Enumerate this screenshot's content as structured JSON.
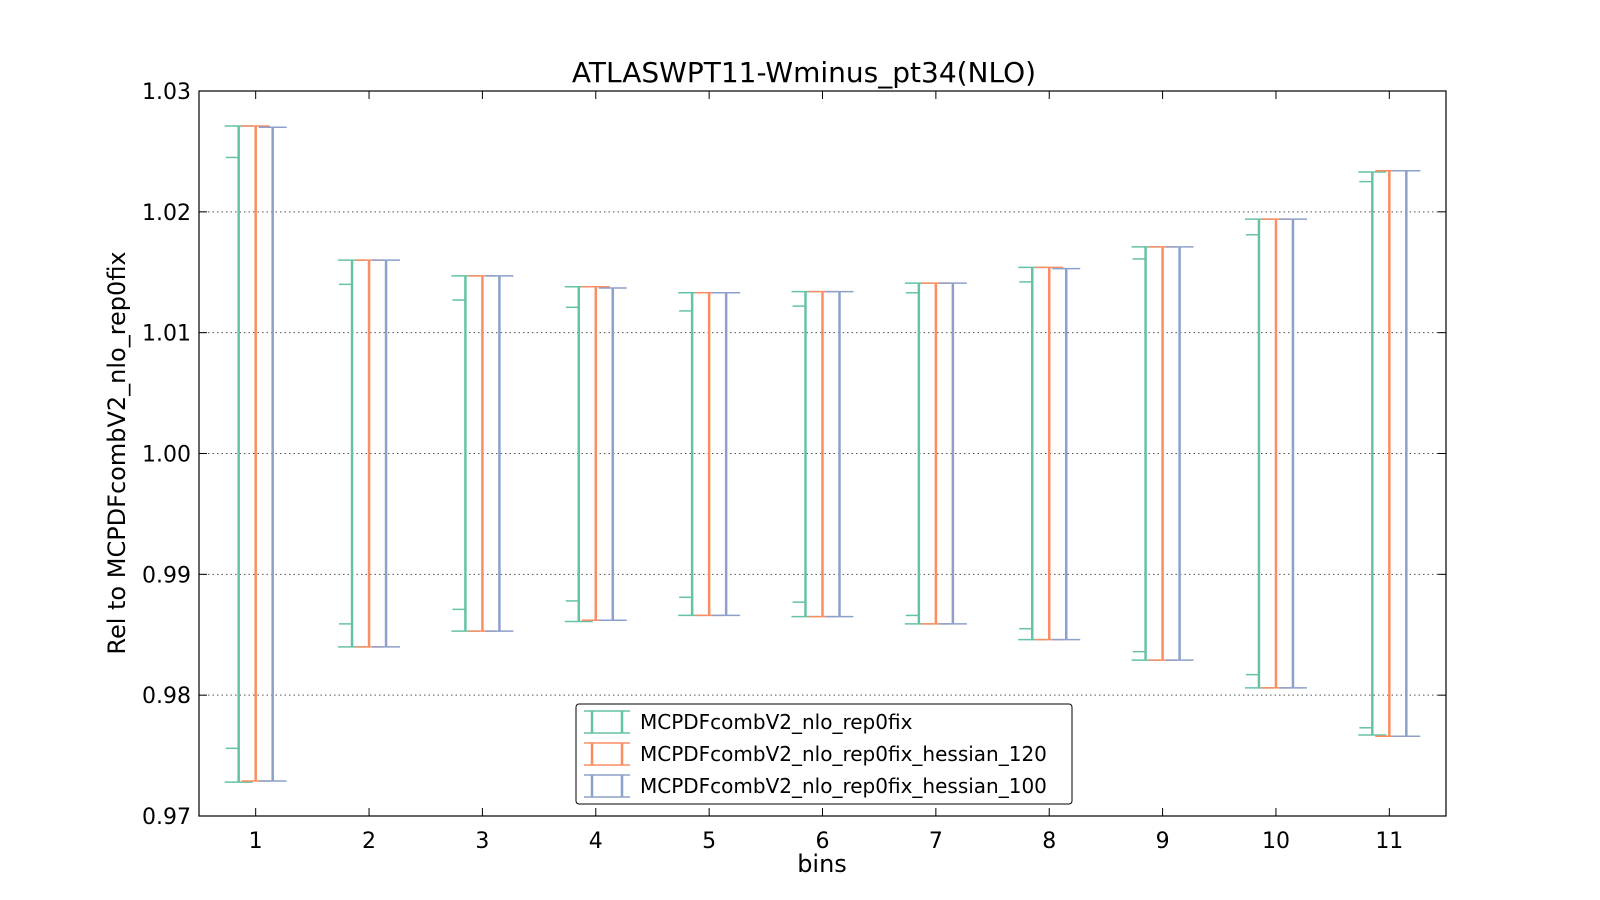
{
  "chart_data": {
    "type": "errorbar",
    "title": "ATLASWPT11-Wminus_pt34(NLO)",
    "xlabel": "bins",
    "ylabel": "Rel to MCPDFcombV2_nlo_rep0fix",
    "xlim": [
      0.5,
      11.5
    ],
    "ylim": [
      0.97,
      1.03
    ],
    "x_ticks": [
      "1",
      "2",
      "3",
      "4",
      "5",
      "6",
      "7",
      "8",
      "9",
      "10",
      "11"
    ],
    "y_ticks": [
      "0.97",
      "0.98",
      "0.99",
      "1.00",
      "1.01",
      "1.02",
      "1.03"
    ],
    "y_tick_values": [
      0.97,
      0.98,
      0.99,
      1.0,
      1.01,
      1.02,
      1.03
    ],
    "grid": "horizontal dotted",
    "legend_position": "lower center",
    "x": [
      1,
      2,
      3,
      4,
      5,
      6,
      7,
      8,
      9,
      10,
      11
    ],
    "series": [
      {
        "name": "MCPDFcombV2_nlo_rep0fix",
        "color": "#66c2a5",
        "offset": -0.15,
        "lower": [
          0.9728,
          0.984,
          0.9853,
          0.9861,
          0.9866,
          0.9865,
          0.9859,
          0.9846,
          0.9829,
          0.9806,
          0.9767
        ],
        "upper": [
          1.0271,
          1.016,
          1.0147,
          1.0138,
          1.0133,
          1.0134,
          1.0141,
          1.0154,
          1.0171,
          1.0194,
          1.0233
        ],
        "inner_lower": [
          0.9756,
          0.9859,
          0.9871,
          0.9878,
          0.9881,
          0.9877,
          0.9866,
          0.9855,
          0.9836,
          0.9817,
          0.9773
        ],
        "inner_upper": [
          1.0245,
          1.014,
          1.0127,
          1.0121,
          1.0118,
          1.0122,
          1.0133,
          1.0142,
          1.0161,
          1.0181,
          1.0225
        ]
      },
      {
        "name": "MCPDFcombV2_nlo_rep0fix_hessian_120",
        "color": "#fc8d62",
        "offset": 0.0,
        "lower": [
          0.9729,
          0.984,
          0.9853,
          0.9862,
          0.9866,
          0.9865,
          0.9859,
          0.9846,
          0.9829,
          0.9806,
          0.9766
        ],
        "upper": [
          1.0271,
          1.016,
          1.0147,
          1.0138,
          1.0133,
          1.0134,
          1.0141,
          1.0154,
          1.0171,
          1.0194,
          1.0234
        ]
      },
      {
        "name": "MCPDFcombV2_nlo_rep0fix_hessian_100",
        "color": "#8da0cb",
        "offset": 0.15,
        "lower": [
          0.9729,
          0.984,
          0.9853,
          0.9862,
          0.9866,
          0.9865,
          0.9859,
          0.9846,
          0.9829,
          0.9806,
          0.9766
        ],
        "upper": [
          1.027,
          1.016,
          1.0147,
          1.0137,
          1.0133,
          1.0134,
          1.0141,
          1.0153,
          1.0171,
          1.0194,
          1.0234
        ]
      }
    ]
  }
}
